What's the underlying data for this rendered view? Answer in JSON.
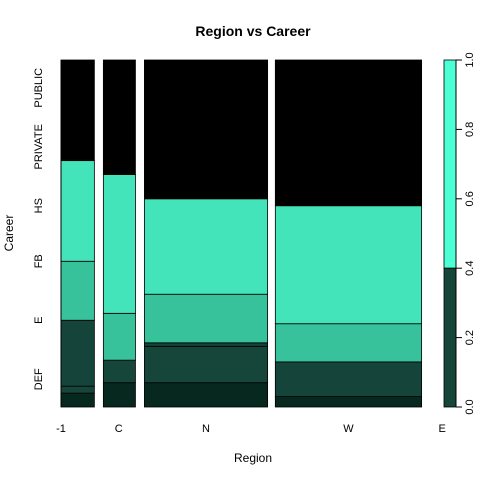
{
  "chart_data": {
    "type": "spinogram",
    "title": "Region vs Career",
    "xlabel": "Region",
    "ylabel": "Career",
    "x_tick_labels": [
      "-1",
      "C",
      "N",
      "W",
      "E"
    ],
    "y_categories": [
      "DEF",
      "E",
      "FB",
      "HS",
      "PRIVATE",
      "PUBLIC"
    ],
    "right_axis_ticks": [
      0.0,
      0.2,
      0.4,
      0.6,
      0.8,
      1.0
    ],
    "right_axis_labels": [
      "0.0",
      "0.2",
      "0.4",
      "0.6",
      "0.8",
      "1.0"
    ],
    "ylim": [
      0,
      1
    ],
    "colors": [
      "#06281f",
      "#16453a",
      "#14443a",
      "#38c29c",
      "#44e4ba",
      "#4cffd5"
    ],
    "columns": [
      {
        "x_start": -1.0,
        "x_end": -0.74,
        "boundaries": [
          0.04,
          0.06,
          0.25,
          0.42,
          0.71,
          0.71
        ]
      },
      {
        "x_start": -0.67,
        "x_end": -0.42,
        "boundaries": [
          0.07,
          0.135,
          0.135,
          0.27,
          0.67,
          0.67
        ]
      },
      {
        "x_start": -0.35,
        "x_end": 0.61,
        "boundaries": [
          0.07,
          0.175,
          0.185,
          0.325,
          0.6,
          0.6
        ]
      },
      {
        "x_start": 0.67,
        "x_end": 1.81,
        "boundaries": [
          0.03,
          0.03,
          0.13,
          0.24,
          0.58,
          0.58
        ]
      }
    ]
  }
}
